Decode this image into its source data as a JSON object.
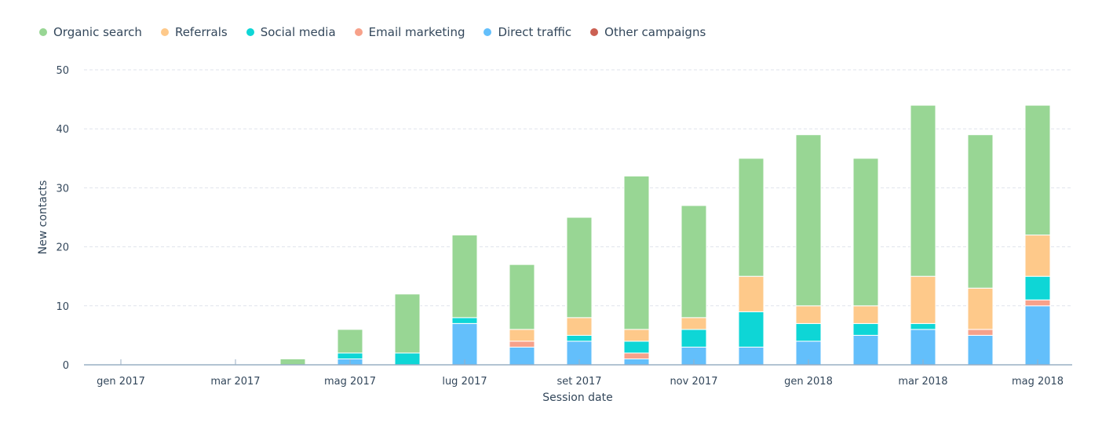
{
  "legend": [
    {
      "name": "Organic search",
      "color": "#98d694"
    },
    {
      "name": "Referrals",
      "color": "#fec98a"
    },
    {
      "name": "Social media",
      "color": "#0ed6d6"
    },
    {
      "name": "Email marketing",
      "color": "#f7a18a"
    },
    {
      "name": "Direct traffic",
      "color": "#63bffb"
    },
    {
      "name": "Other campaigns",
      "color": "#cb6052"
    }
  ],
  "chart_data": {
    "type": "bar",
    "stacked": true,
    "title": "",
    "xlabel": "Session date",
    "ylabel": "New contacts",
    "ylim": [
      0,
      50
    ],
    "yticks": [
      0,
      10,
      20,
      30,
      40,
      50
    ],
    "grid": true,
    "legend_position": "top-left",
    "x_tick_labels": [
      "gen 2017",
      "mar 2017",
      "mag 2017",
      "lug 2017",
      "set 2017",
      "nov 2017",
      "gen 2018",
      "mar 2018",
      "mag 2018"
    ],
    "categories": [
      "gen 2017",
      "feb 2017",
      "mar 2017",
      "apr 2017",
      "mag 2017",
      "giu 2017",
      "lug 2017",
      "ago 2017",
      "set 2017",
      "ott 2017",
      "nov 2017",
      "dic 2017",
      "gen 2018",
      "feb 2018",
      "mar 2018",
      "apr 2018",
      "mag 2018"
    ],
    "series": [
      {
        "name": "Direct traffic",
        "color": "#63bffb",
        "values": [
          0,
          0,
          0,
          0,
          1,
          0,
          7,
          3,
          4,
          1,
          3,
          3,
          4,
          5,
          6,
          5,
          10
        ]
      },
      {
        "name": "Email marketing",
        "color": "#f7a18a",
        "values": [
          0,
          0,
          0,
          0,
          0,
          0,
          0,
          1,
          0,
          1,
          0,
          0,
          0,
          0,
          0,
          1,
          1
        ]
      },
      {
        "name": "Social media",
        "color": "#0ed6d6",
        "values": [
          0,
          0,
          0,
          0,
          1,
          2,
          1,
          0,
          1,
          2,
          3,
          6,
          3,
          2,
          1,
          0,
          4
        ]
      },
      {
        "name": "Referrals",
        "color": "#fec98a",
        "values": [
          0,
          0,
          0,
          0,
          0,
          0,
          0,
          2,
          3,
          2,
          2,
          6,
          3,
          3,
          8,
          7,
          7
        ]
      },
      {
        "name": "Organic search",
        "color": "#98d694",
        "values": [
          0,
          0,
          0,
          1,
          4,
          10,
          14,
          11,
          17,
          26,
          19,
          20,
          29,
          25,
          29,
          26,
          22
        ]
      },
      {
        "name": "Other campaigns",
        "color": "#cb6052",
        "values": [
          0,
          0,
          0,
          0,
          0,
          0,
          0,
          0,
          0,
          0,
          0,
          0,
          0,
          0,
          0,
          0,
          0
        ]
      }
    ]
  }
}
